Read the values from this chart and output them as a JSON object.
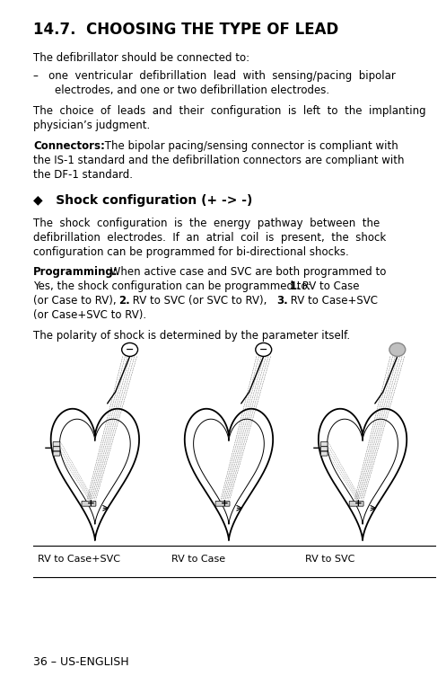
{
  "title": "14.7.  CHOOSING THE TYPE OF LEAD",
  "bg_color": "#ffffff",
  "text_color": "#000000",
  "footer_text": "36 – US-ENGLISH",
  "caption_labels": [
    "RV to Case+SVC",
    "RV to Case",
    "RV to SVC"
  ],
  "lm": 0.075,
  "rm": 0.975,
  "font_size": 8.5,
  "title_font_size": 12.0,
  "diagram_configs": [
    {
      "has_top_minus": true,
      "circle_gray": false,
      "has_case_minus": true
    },
    {
      "has_top_minus": true,
      "circle_gray": false,
      "has_case_minus": false
    },
    {
      "has_top_minus": false,
      "circle_gray": true,
      "has_case_minus": true
    }
  ]
}
